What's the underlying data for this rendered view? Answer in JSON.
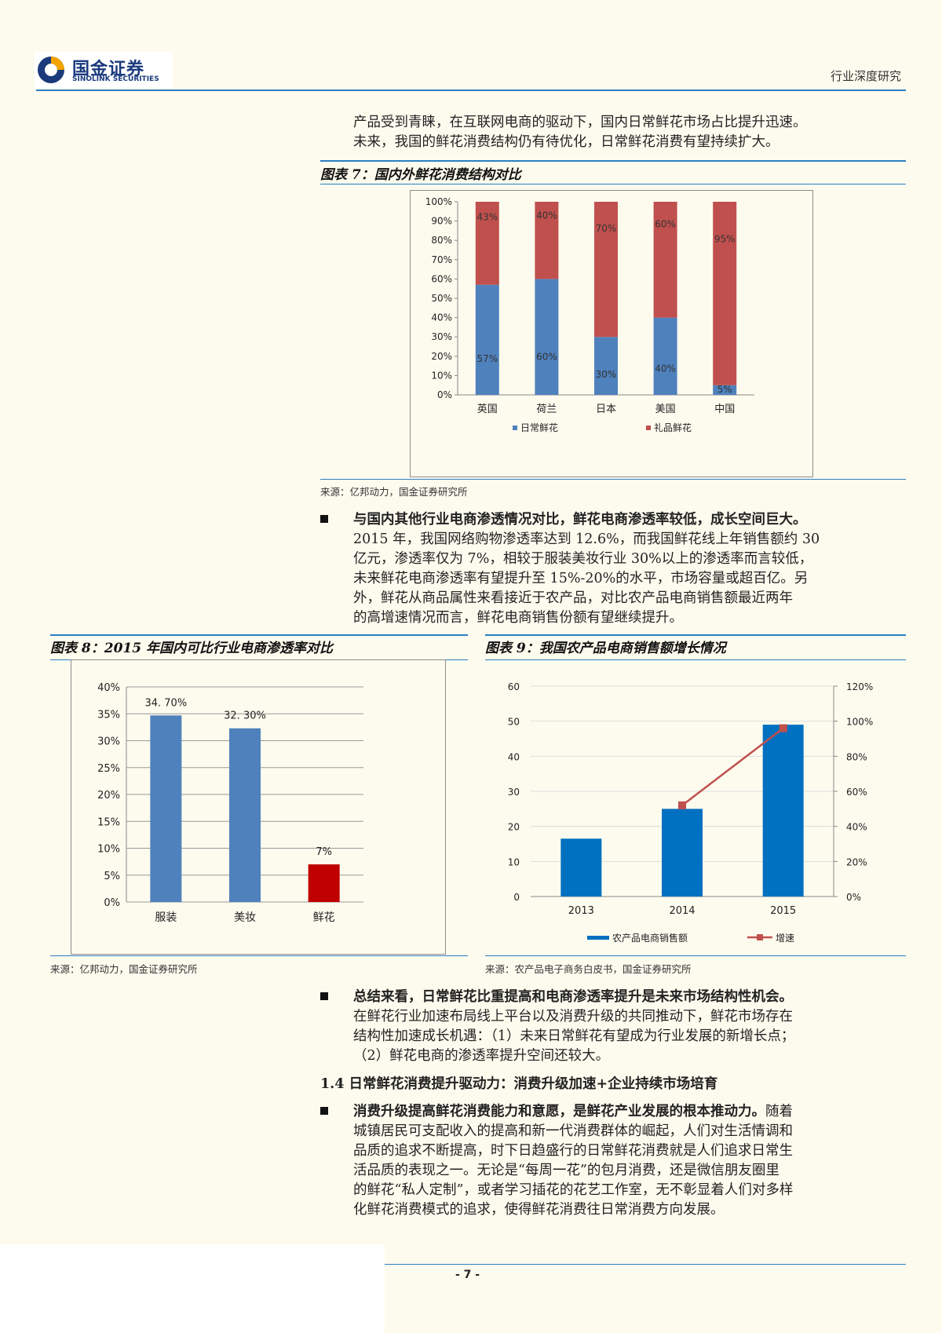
{
  "header": {
    "logo_cn": "国金证券",
    "logo_en": "SINOLINK SECURITIES",
    "report_type": "行业深度研究"
  },
  "intro": {
    "line1": "产品受到青睐，在互联网电商的驱动下，国内日常鲜花市场占比提升迅速。",
    "line2": "未来，我国的鲜花消费结构仍有待优化，日常鲜花消费有望持续扩大。"
  },
  "fig7": {
    "title": "图表 7：国内外鲜花消费结构对比",
    "source": "来源：亿邦动力，国金证券研究所"
  },
  "bullet1": {
    "heading": "与国内其他行业电商渗透情况对比，鲜花电商渗透率较低，成长空间巨大。",
    "lines": [
      "2015 年，我国网络购物渗透率达到 12.6%，而我国鲜花线上年销售额约 30",
      "亿元，渗透率仅为 7%，相较于服装美妆行业 30%以上的渗透率而言较低，",
      "未来鲜花电商渗透率有望提升至 15%-20%的水平，市场容量或超百亿。另",
      "外，鲜花从商品属性来看接近于农产品，对比农产品电商销售额最近两年",
      "的高增速情况而言，鲜花电商销售份额有望继续提升。"
    ]
  },
  "fig8": {
    "title": "图表 8：2015 年国内可比行业电商渗透率对比",
    "source": "来源：亿邦动力，国金证券研究所"
  },
  "fig9": {
    "title": "图表 9：我国农产品电商销售额增长情况",
    "source": "来源：农产品电子商务白皮书，国金证券研究所"
  },
  "bullet2": {
    "heading": "总结来看，日常鲜花比重提高和电商渗透率提升是未来市场结构性机会。",
    "lines": [
      "在鲜花行业加速布局线上平台以及消费升级的共同推动下，鲜花市场存在",
      "结构性加速成长机遇：（1）未来日常鲜花有望成为行业发展的新增长点；",
      "（2）鲜花电商的渗透率提升空间还较大。"
    ]
  },
  "section": {
    "heading": "1.4 日常鲜花消费提升驱动力：消费升级加速+企业持续市场培育"
  },
  "bullet3": {
    "heading": "消费升级提高鲜花消费能力和意愿，是鲜花产业发展的根本推动力。",
    "first_rest": "随着",
    "lines": [
      "城镇居民可支配收入的提高和新一代消费群体的崛起，人们对生活情调和",
      "品质的追求不断提高，时下日趋盛行的日常鲜花消费就是人们追求日常生",
      "活品质的表现之一。无论是“每周一花”的包月消费，还是微信朋友圈里",
      "的鲜花“私人定制”，或者学习插花的花艺工作室，无不彰显着人们对多样",
      "化鲜花消费模式的追求，使得鲜花消费往日常消费方向发展。"
    ]
  },
  "footer": {
    "page": "- 7 -"
  },
  "colors": {
    "blue": "#4f81bd",
    "red": "#c0504d",
    "darkblue": "#0070c0",
    "brightred": "#c00000"
  },
  "chart_data": [
    {
      "id": "fig7",
      "type": "bar",
      "stacked": true,
      "categories": [
        "英国",
        "荷兰",
        "日本",
        "美国",
        "中国"
      ],
      "series": [
        {
          "name": "日常鲜花",
          "values": [
            57,
            60,
            30,
            40,
            5
          ],
          "labels": [
            "57%",
            "60%",
            "30%",
            "40%",
            "5%"
          ]
        },
        {
          "name": "礼品鲜花",
          "values": [
            43,
            40,
            70,
            60,
            95
          ],
          "labels": [
            "43%",
            "40%",
            "70%",
            "60%",
            "95%"
          ]
        }
      ],
      "yticks": [
        "0%",
        "10%",
        "20%",
        "30%",
        "40%",
        "50%",
        "60%",
        "70%",
        "80%",
        "90%",
        "100%"
      ],
      "ylim": [
        0,
        100
      ],
      "legend": "bottom"
    },
    {
      "id": "fig8",
      "type": "bar",
      "categories": [
        "服装",
        "美妆",
        "鲜花"
      ],
      "values": [
        34.7,
        32.3,
        7
      ],
      "labels": [
        "34. 70%",
        "32. 30%",
        "7%"
      ],
      "yticks": [
        "0%",
        "5%",
        "10%",
        "15%",
        "20%",
        "25%",
        "30%",
        "35%",
        "40%"
      ],
      "ylim": [
        0,
        40
      ]
    },
    {
      "id": "fig9",
      "type": "bar",
      "categories": [
        "2013",
        "2014",
        "2015"
      ],
      "series": [
        {
          "name": "农产品电商销售额",
          "type": "bar",
          "values": [
            16.5,
            25,
            49
          ]
        },
        {
          "name": "增速",
          "type": "line",
          "axis": "right",
          "values": [
            null,
            52,
            96
          ]
        }
      ],
      "yticks_left": [
        "0",
        "10",
        "20",
        "30",
        "40",
        "50",
        "60"
      ],
      "ylim_left": [
        0,
        60
      ],
      "yticks_right": [
        "0%",
        "20%",
        "40%",
        "60%",
        "80%",
        "100%",
        "120%"
      ],
      "ylim_right": [
        0,
        120
      ],
      "legend": "bottom"
    }
  ]
}
